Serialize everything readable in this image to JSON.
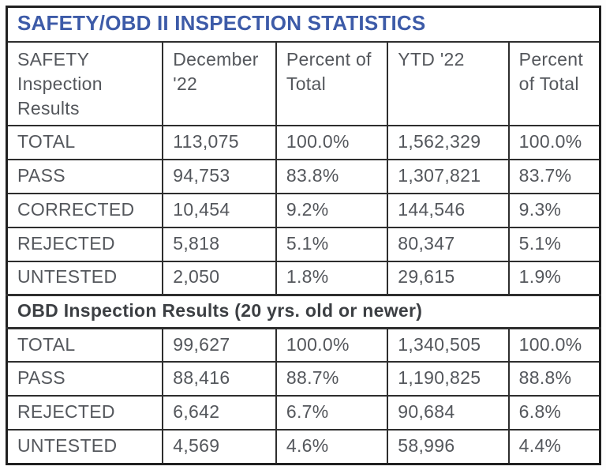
{
  "title": "SAFETY/OBD II INSPECTION STATISTICS",
  "colors": {
    "title_blue": "#3d5ba8",
    "body_text_gray": "#54575c",
    "section_header_text": "#3c3f43",
    "border_dark": "#2e2e2e",
    "background": "#ffffff"
  },
  "chart_data": {
    "type": "table",
    "title": "SAFETY/OBD II INSPECTION STATISTICS",
    "columns": [
      "SAFETY Inspection Results",
      "December '22",
      "Percent of Total",
      "YTD '22",
      "Percent of Total"
    ],
    "sections": [
      {
        "name": "SAFETY Inspection Results",
        "rows": [
          {
            "label": "TOTAL",
            "december_22": "113,075",
            "december_pct": "100.0%",
            "ytd_22": "1,562,329",
            "ytd_pct": "100.0%"
          },
          {
            "label": "PASS",
            "december_22": "94,753",
            "december_pct": "83.8%",
            "ytd_22": "1,307,821",
            "ytd_pct": "83.7%"
          },
          {
            "label": "CORRECTED",
            "december_22": "10,454",
            "december_pct": "9.2%",
            "ytd_22": "144,546",
            "ytd_pct": "9.3%"
          },
          {
            "label": "REJECTED",
            "december_22": "5,818",
            "december_pct": "5.1%",
            "ytd_22": "80,347",
            "ytd_pct": "5.1%"
          },
          {
            "label": "UNTESTED",
            "december_22": "2,050",
            "december_pct": "1.8%",
            "ytd_22": "29,615",
            "ytd_pct": "1.9%"
          }
        ]
      },
      {
        "name": "OBD Inspection Results (20 yrs. old or newer)",
        "rows": [
          {
            "label": "TOTAL",
            "december_22": "99,627",
            "december_pct": "100.0%",
            "ytd_22": "1,340,505",
            "ytd_pct": "100.0%"
          },
          {
            "label": "PASS",
            "december_22": "88,416",
            "december_pct": "88.7%",
            "ytd_22": "1,190,825",
            "ytd_pct": "88.8%"
          },
          {
            "label": "REJECTED",
            "december_22": "6,642",
            "december_pct": "6.7%",
            "ytd_22": "90,684",
            "ytd_pct": "6.8%"
          },
          {
            "label": "UNTESTED",
            "december_22": "4,569",
            "december_pct": "4.6%",
            "ytd_22": "58,996",
            "ytd_pct": "4.4%"
          }
        ]
      }
    ]
  }
}
